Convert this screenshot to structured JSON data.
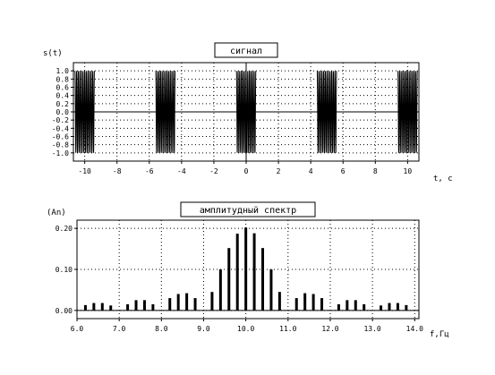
{
  "chart_data": [
    {
      "type": "line",
      "title": "сигнал",
      "ylabel": "s(t)",
      "xlabel": "t, c",
      "xlim": [
        -10.7,
        10.7
      ],
      "ylim": [
        -1.2,
        1.2
      ],
      "x_ticks": [
        -10,
        -8,
        -6,
        -4,
        -2,
        0,
        2,
        4,
        6,
        8,
        10
      ],
      "x_tick_labels": [
        "-10",
        "-8",
        "-6",
        "-4",
        "-2",
        "0",
        "2",
        "4",
        "6",
        "8",
        "10"
      ],
      "y_ticks": [
        1.0,
        0.8,
        0.6,
        0.4,
        0.2,
        0.0,
        -0.2,
        -0.4,
        -0.6,
        -0.8,
        -1.0
      ],
      "y_tick_labels": [
        "1.0",
        "0.8",
        "0.6",
        "0.4",
        "0.2",
        "0.0",
        "-0.2",
        "-0.4",
        "-0.6",
        "-0.8",
        "-1.0"
      ],
      "grid": true,
      "bursts": [
        {
          "center": -10.0,
          "half_width": 0.6
        },
        {
          "center": -5.0,
          "half_width": 0.6
        },
        {
          "center": 0.0,
          "half_width": 0.6
        },
        {
          "center": 5.0,
          "half_width": 0.6
        },
        {
          "center": 10.0,
          "half_width": 0.6
        }
      ],
      "carrier_frequency": 10,
      "amplitude": 1.0
    },
    {
      "type": "bar",
      "title": "амплитудный спектр",
      "ylabel": "(An)",
      "xlabel": "f,Гц",
      "xlim": [
        6.0,
        14.1
      ],
      "ylim": [
        -0.02,
        0.22
      ],
      "x_ticks": [
        6.0,
        7.0,
        8.0,
        9.0,
        10.0,
        11.0,
        12.0,
        13.0,
        14.0
      ],
      "x_tick_labels": [
        "6.0",
        "7.0",
        "8.0",
        "9.0",
        "10.0",
        "11.0",
        "12.0",
        "13.0",
        "14.0"
      ],
      "y_ticks": [
        0.2,
        0.1,
        0.0
      ],
      "y_tick_labels": [
        "0.20",
        "0.10",
        "0.00"
      ],
      "grid": true,
      "x": [
        6.2,
        6.4,
        6.6,
        6.8,
        7.2,
        7.4,
        7.6,
        7.8,
        8.2,
        8.4,
        8.6,
        8.8,
        9.2,
        9.4,
        9.6,
        9.8,
        10.0,
        10.2,
        10.4,
        10.6,
        10.8,
        11.2,
        11.4,
        11.6,
        11.8,
        12.2,
        12.4,
        12.6,
        12.8,
        13.2,
        13.4,
        13.6,
        13.8
      ],
      "values": [
        0.013,
        0.018,
        0.018,
        0.012,
        0.015,
        0.025,
        0.025,
        0.015,
        0.03,
        0.04,
        0.042,
        0.03,
        0.045,
        0.1,
        0.152,
        0.187,
        0.202,
        0.188,
        0.152,
        0.1,
        0.045,
        0.03,
        0.042,
        0.04,
        0.03,
        0.015,
        0.025,
        0.025,
        0.015,
        0.012,
        0.018,
        0.018,
        0.013
      ]
    }
  ]
}
